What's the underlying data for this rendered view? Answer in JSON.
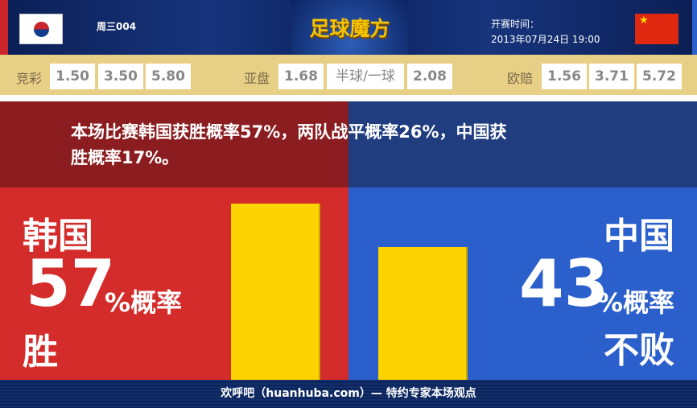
{
  "header": {
    "week_match": "周三004",
    "logo_text": "足球魔方",
    "kickoff_label": "开赛时间：",
    "kickoff_time": "2013年07月24日 19:00",
    "home_flag": "korea-flag",
    "away_flag": "china-flag"
  },
  "odds": {
    "jingcai": {
      "label": "竞彩",
      "values": [
        "1.50",
        "3.50",
        "5.80"
      ]
    },
    "yapan": {
      "label": "亚盘",
      "values": [
        "1.68",
        "半球/一球",
        "2.08"
      ]
    },
    "oupei": {
      "label": "欧赔",
      "values": [
        "1.56",
        "3.71",
        "5.72"
      ]
    }
  },
  "summary": {
    "line1": "本场比赛韩国获胜概率57%，两队战平概率26%，中国获",
    "line2": "胜概率17%。"
  },
  "home": {
    "team": "韩国",
    "percent": "57",
    "suffix": "%概率",
    "outcome": "胜",
    "value": 57,
    "color": "#d42b2b"
  },
  "away": {
    "team": "中国",
    "percent": "43",
    "suffix": "%概率",
    "outcome": "不败",
    "value": 43,
    "color": "#2a5fcc"
  },
  "bar_color": "#fcd200",
  "footer": {
    "text": "欢呼吧（huanhuba.com）— 特约专家本场观点"
  }
}
